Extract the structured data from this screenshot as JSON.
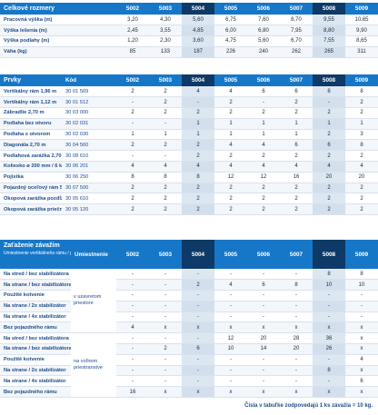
{
  "columns": [
    "5002",
    "5003",
    "5004",
    "5005",
    "5006",
    "5007",
    "5008",
    "5009"
  ],
  "table1": {
    "title": "Celkové rozmery",
    "rows": [
      {
        "label": "Pracovná výška (m)",
        "values": [
          "3,20",
          "4,30",
          "5,60",
          "6,75",
          "7,60",
          "8,70",
          "9,55",
          "10,65"
        ]
      },
      {
        "label": "Výška lešenia (m)",
        "values": [
          "2,45",
          "3,55",
          "4,85",
          "6,00",
          "6,80",
          "7,95",
          "8,80",
          "9,90"
        ]
      },
      {
        "label": "Výška podlahy (m)",
        "values": [
          "1,20",
          "2,30",
          "3,60",
          "4,75",
          "5,60",
          "6,70",
          "7,55",
          "8,65"
        ]
      },
      {
        "label": "Váha (kg)",
        "values": [
          "85",
          "133",
          "187",
          "226",
          "240",
          "262",
          "265",
          "311"
        ]
      }
    ]
  },
  "table2": {
    "title": "Prvky",
    "code_header": "Kód",
    "rows": [
      {
        "label": "Vertikálny rám 1,96 m",
        "code": "30 01 569",
        "values": [
          "2",
          "2",
          "4",
          "4",
          "6",
          "6",
          "8",
          "8"
        ]
      },
      {
        "label": "Vertikálny rám 1,12 m",
        "code": "30 01 512",
        "values": [
          "-",
          "2",
          "-",
          "2",
          "-",
          "2",
          "-",
          "2"
        ]
      },
      {
        "label": "Zábradlie 2,70 m",
        "code": "30 03 000",
        "values": [
          "2",
          "2",
          "2",
          "2",
          "2",
          "2",
          "2",
          "2"
        ]
      },
      {
        "label": "Podlaha bez otvoru",
        "code": "30 02 031",
        "values": [
          "-",
          "-",
          "1",
          "1",
          "1",
          "1",
          "1",
          "1"
        ]
      },
      {
        "label": "Podlaha s otvorom",
        "code": "30 02 030",
        "values": [
          "1",
          "1",
          "1",
          "1",
          "1",
          "1",
          "2",
          "3"
        ]
      },
      {
        "label": "Diagonála 2,70 m",
        "code": "30 04 560",
        "values": [
          "2",
          "2",
          "2",
          "4",
          "4",
          "6",
          "6",
          "8"
        ]
      },
      {
        "label": "Podlahová zarážka 2,70 m",
        "code": "30 08 610",
        "values": [
          "-",
          "-",
          "2",
          "2",
          "2",
          "2",
          "2",
          "2"
        ]
      },
      {
        "label": "Koliesko ø 200 mm / 6 kN",
        "code": "30 06 201",
        "values": [
          "4",
          "4",
          "4",
          "4",
          "4",
          "4",
          "4",
          "4"
        ]
      },
      {
        "label": "Pojistka",
        "code": "30 06 250",
        "values": [
          "8",
          "8",
          "8",
          "12",
          "12",
          "16",
          "20",
          "20"
        ]
      },
      {
        "label": "Pojazdný oceľový rám 5000",
        "code": "30 07 500",
        "values": [
          "2",
          "2",
          "2",
          "2",
          "2",
          "2",
          "2",
          "2"
        ]
      },
      {
        "label": "Okopová zarážka pozdĺžne",
        "code": "30 05 610",
        "values": [
          "2",
          "2",
          "2",
          "2",
          "2",
          "2",
          "2",
          "2"
        ]
      },
      {
        "label": "Okopová zarážka priečnane",
        "code": "30 05 120",
        "values": [
          "2",
          "2",
          "2",
          "2",
          "2",
          "2",
          "2",
          "2"
        ]
      }
    ]
  },
  "table3": {
    "title": "Zaťaženie závažím",
    "subtitle": "Umiestnenie vertikálneho rámu / počet stabilizátorov",
    "placement_header": "Umiestnenie",
    "groups": [
      {
        "placement": "v uzavretom priestore",
        "rows": [
          {
            "label": "Na stred / bez stabilizátora",
            "values": [
              "-",
              "-",
              "-",
              "-",
              "-",
              "-",
              "8",
              "8"
            ]
          },
          {
            "label": "Na strane / bez stabilizátora",
            "values": [
              "-",
              "-",
              "2",
              "4",
              "6",
              "8",
              "10",
              "10"
            ]
          },
          {
            "label": "Použité kotvenie",
            "values": [
              "-",
              "-",
              "-",
              "-",
              "-",
              "-",
              "-",
              "-"
            ]
          },
          {
            "label": "Na strane / 2x stabilizátor",
            "values": [
              "-",
              "-",
              "-",
              "-",
              "-",
              "-",
              "-",
              "-"
            ]
          },
          {
            "label": "Na strane / 4x stabilizátor",
            "values": [
              "-",
              "-",
              "-",
              "-",
              "-",
              "-",
              "-",
              "-"
            ]
          },
          {
            "label": "Bez pojazdného rámu",
            "values": [
              "4",
              "x",
              "x",
              "x",
              "x",
              "x",
              "x",
              "x"
            ]
          }
        ]
      },
      {
        "placement": "na voľnom priestranstve",
        "rows": [
          {
            "label": "Na stred / bez stabilizátora",
            "values": [
              "-",
              "-",
              "-",
              "12",
              "20",
              "28",
              "36",
              "x"
            ]
          },
          {
            "label": "Na strane / bez stabilizátora",
            "values": [
              "-",
              "2",
              "6",
              "10",
              "14",
              "20",
              "26",
              "x"
            ]
          },
          {
            "label": "Použité kotvenie",
            "values": [
              "-",
              "-",
              "-",
              "-",
              "-",
              "-",
              "-",
              "4"
            ]
          },
          {
            "label": "Na strane / 2x stabilizátor",
            "values": [
              "-",
              "-",
              "-",
              "-",
              "-",
              "-",
              "8",
              "x"
            ]
          },
          {
            "label": "Na strane / 4x stabilizátor",
            "values": [
              "-",
              "-",
              "-",
              "-",
              "-",
              "-",
              "-",
              "6"
            ]
          },
          {
            "label": "Bez pojazdného rámu",
            "values": [
              "16",
              "x",
              "x",
              "x",
              "x",
              "x",
              "x",
              "x"
            ]
          }
        ]
      }
    ]
  },
  "footnote": "Čísla v tabuľke zodpovedajú 1 ks závažia = 10 kg.",
  "colors": {
    "header_blue": "#1677c8",
    "header_highlight": "#0d3a66",
    "column_highlight": "#dde7f2",
    "label_text": "#1e4c8c"
  }
}
